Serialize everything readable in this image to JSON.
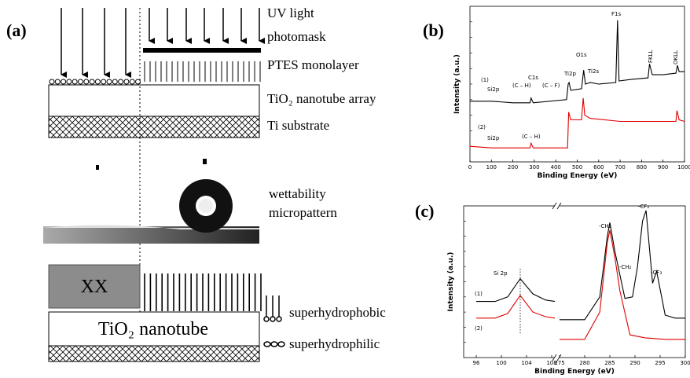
{
  "panel_a": {
    "label": "(a)",
    "uv_light": "UV light",
    "photomask": "photomask",
    "monolayer": "PTES monolayer",
    "array": "TiO₂ nanotube array",
    "substrate": "Ti substrate",
    "wettability": "wettability",
    "micropattern": "micropattern",
    "block": "XX",
    "nanotube": "TiO₂ nanotube",
    "hydrophobic": "superhydrophobic",
    "hydrophilic": "superhydrophilic"
  },
  "chart_data": [
    {
      "type": "line",
      "label": "(b)",
      "xlabel": "Binding Energy (eV)",
      "ylabel": "Intensity (a.u.)",
      "xlim": [
        0,
        1000
      ],
      "xticks": [
        0,
        100,
        200,
        300,
        400,
        500,
        600,
        700,
        800,
        900,
        1000
      ],
      "ylim": [
        0,
        100
      ],
      "annotations": [
        "(1)",
        "Si2p",
        "C1s",
        "(C – H)",
        "(C – F)",
        "Ti2p",
        "O1s",
        "Ti2s",
        "F1s",
        "FKLL",
        "OKLL",
        "(2)",
        "Si2p",
        "(C – H)"
      ],
      "series": [
        {
          "name": "(1)",
          "color": "#000000",
          "x": [
            0,
            100,
            200,
            280,
            285,
            295,
            450,
            458,
            462,
            470,
            520,
            530,
            538,
            560,
            600,
            680,
            688,
            695,
            750,
            830,
            837,
            850,
            900,
            960,
            967,
            975,
            1000
          ],
          "values": [
            39,
            39,
            38,
            38,
            41,
            38,
            40,
            50,
            51,
            46,
            47,
            59,
            50,
            51,
            50,
            51,
            91,
            52,
            53,
            54,
            63,
            56,
            56,
            57,
            62,
            58,
            58
          ]
        },
        {
          "name": "(2)",
          "color": "#e00000",
          "x": [
            0,
            100,
            200,
            280,
            285,
            295,
            455,
            460,
            470,
            520,
            528,
            535,
            560,
            700,
            900,
            960,
            965,
            975,
            1000
          ],
          "values": [
            10,
            9,
            9,
            9,
            12,
            9,
            9,
            32,
            27,
            27,
            41,
            30,
            28,
            26,
            26,
            26,
            33,
            27,
            26
          ]
        }
      ]
    },
    {
      "type": "line",
      "label": "(c)",
      "xlabel": "Binding Energy (eV)",
      "ylabel": "Intensity (a.u.)",
      "xlim": [
        [
          94,
          108.5
        ],
        [
          275,
          300
        ]
      ],
      "xticks": [
        96,
        100,
        104,
        108,
        275,
        280,
        285,
        290,
        295,
        300
      ],
      "ylim": [
        0,
        100
      ],
      "reference_x": 103,
      "annotations": [
        "Si 2p",
        "-CH₂",
        "-CH₂",
        "-CF₂",
        "-CF₃",
        "(1)",
        "(2)"
      ],
      "series": [
        {
          "name": "(1)",
          "color": "#000000",
          "x": [
            96,
            99,
            101,
            103,
            105,
            107,
            108.5,
            null,
            275,
            280,
            283,
            284.5,
            285,
            286,
            288,
            289.5,
            290.5,
            291.5,
            292.2,
            293.5,
            294.3,
            295,
            296,
            298,
            300
          ],
          "values": [
            37,
            37,
            40,
            52,
            42,
            38,
            37,
            null,
            25,
            25,
            40,
            80,
            89,
            70,
            39,
            40,
            60,
            90,
            97,
            49,
            57,
            45,
            28,
            26,
            26
          ]
        },
        {
          "name": "(2)",
          "color": "#e00000",
          "x": [
            96,
            99,
            101,
            103,
            105,
            107,
            108.5,
            null,
            275,
            280,
            283,
            284.5,
            285,
            286,
            287,
            289,
            292,
            296,
            300
          ],
          "values": [
            26,
            26,
            29,
            41,
            30,
            27,
            26,
            null,
            12,
            12,
            30,
            76,
            84,
            66,
            44,
            15,
            13,
            12,
            12
          ]
        }
      ]
    }
  ]
}
